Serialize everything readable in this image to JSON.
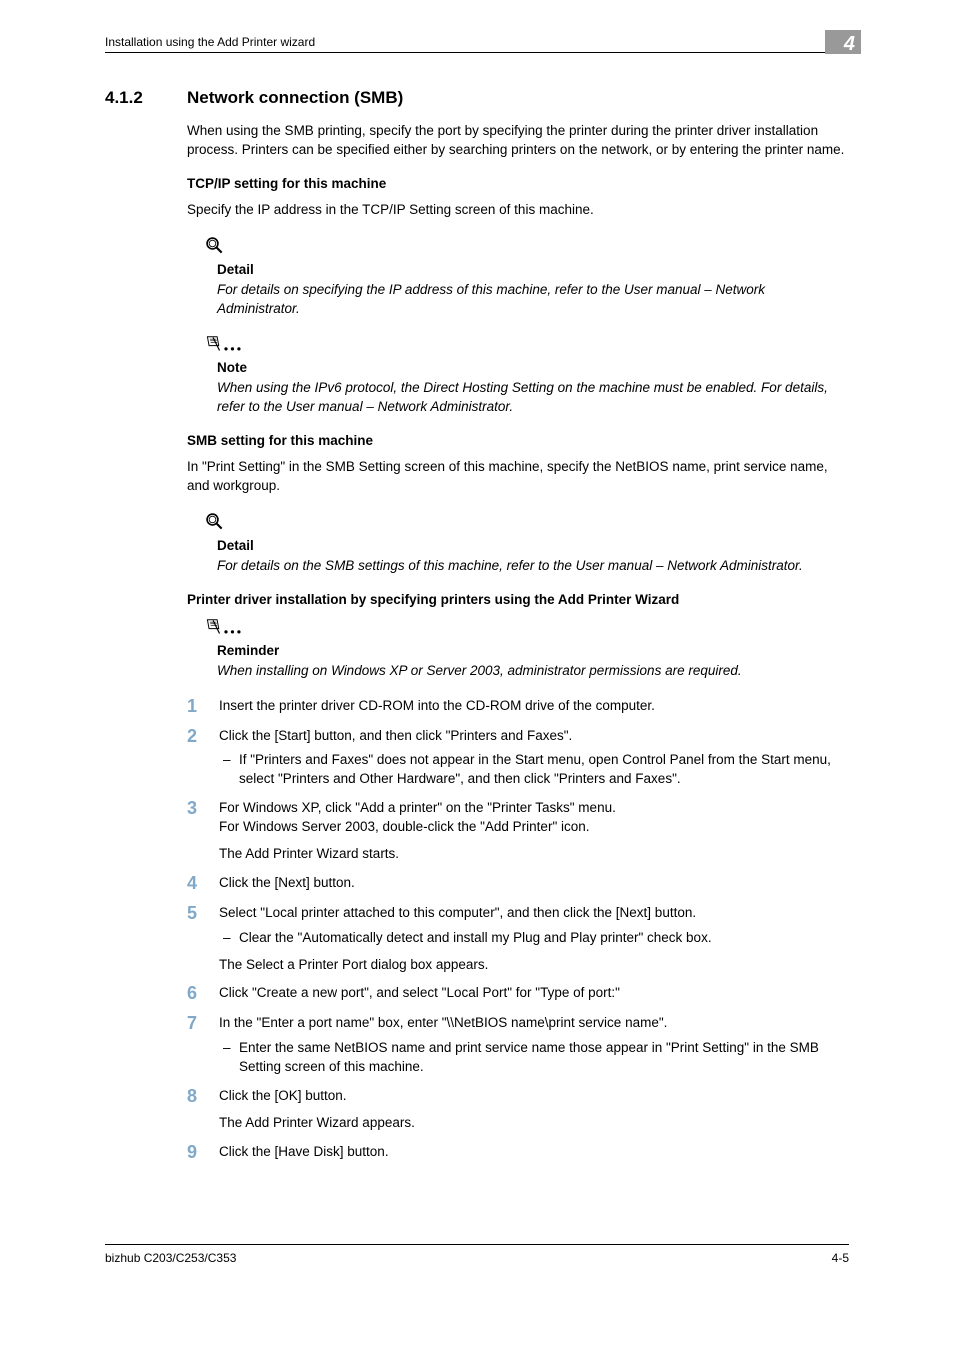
{
  "header": {
    "breadcrumb": "Installation using the Add Printer wizard",
    "chapter_number": "4"
  },
  "section": {
    "number": "4.1.2",
    "title": "Network connection (SMB)",
    "intro": "When using the SMB printing, specify the port by specifying the printer during the printer driver installation process. Printers can be specified either by searching printers on the network, or by entering the printer name."
  },
  "tcp_ip": {
    "heading": "TCP/IP setting for this machine",
    "body": "Specify the IP address in the TCP/IP Setting screen of this machine."
  },
  "detail1": {
    "title": "Detail",
    "body": "For details on specifying the IP address of this machine, refer to the User manual – Network Administrator."
  },
  "note1": {
    "title": "Note",
    "body": "When using the IPv6 protocol, the Direct Hosting Setting on the machine must be enabled. For details, refer to the User manual – Network Administrator."
  },
  "smb": {
    "heading": "SMB setting for this machine",
    "body": "In \"Print Setting\" in the SMB Setting screen of this machine, specify the NetBIOS name, print service name, and workgroup."
  },
  "detail2": {
    "title": "Detail",
    "body": "For details on the SMB settings of this machine, refer to the User manual – Network Administrator."
  },
  "wizard_heading": "Printer driver installation by specifying printers using the Add Printer Wizard",
  "reminder": {
    "title": "Reminder",
    "body": "When installing on Windows XP or Server 2003, administrator permissions are required."
  },
  "steps": [
    {
      "num": "1",
      "body": "Insert the printer driver CD-ROM into the CD-ROM drive of the computer."
    },
    {
      "num": "2",
      "body": "Click the [Start] button, and then click \"Printers and Faxes\".",
      "sub": [
        "If \"Printers and Faxes\" does not appear in the Start menu, open Control Panel from the Start menu, select \"Printers and Other Hardware\", and then click \"Printers and Faxes\"."
      ]
    },
    {
      "num": "3",
      "body": "For Windows XP, click \"Add a printer\" on the \"Printer Tasks\" menu.\nFor Windows Server 2003, double-click the \"Add Printer\" icon.",
      "followup": "The Add Printer Wizard starts."
    },
    {
      "num": "4",
      "body": "Click the [Next] button."
    },
    {
      "num": "5",
      "body": "Select \"Local printer attached to this computer\", and then click the [Next] button.",
      "sub": [
        "Clear the \"Automatically detect and install my Plug and Play printer\" check box."
      ],
      "followup": "The Select a Printer Port dialog box appears."
    },
    {
      "num": "6",
      "body": "Click \"Create a new port\", and select \"Local Port\" for \"Type of port:\""
    },
    {
      "num": "7",
      "body": "In the \"Enter a port name\" box, enter \"\\\\NetBIOS name\\print service name\".",
      "sub": [
        "Enter the same NetBIOS name and print service name those appear in \"Print Setting\" in the SMB Setting screen of this machine."
      ]
    },
    {
      "num": "8",
      "body": "Click the [OK] button.",
      "followup": "The Add Printer Wizard appears."
    },
    {
      "num": "9",
      "body": "Click the [Have Disk] button."
    }
  ],
  "footer": {
    "model": "bizhub C203/C253/C353",
    "page": "4-5"
  },
  "colors": {
    "step_number": "#80a8c8",
    "chapter_badge_bg": "#999999"
  }
}
